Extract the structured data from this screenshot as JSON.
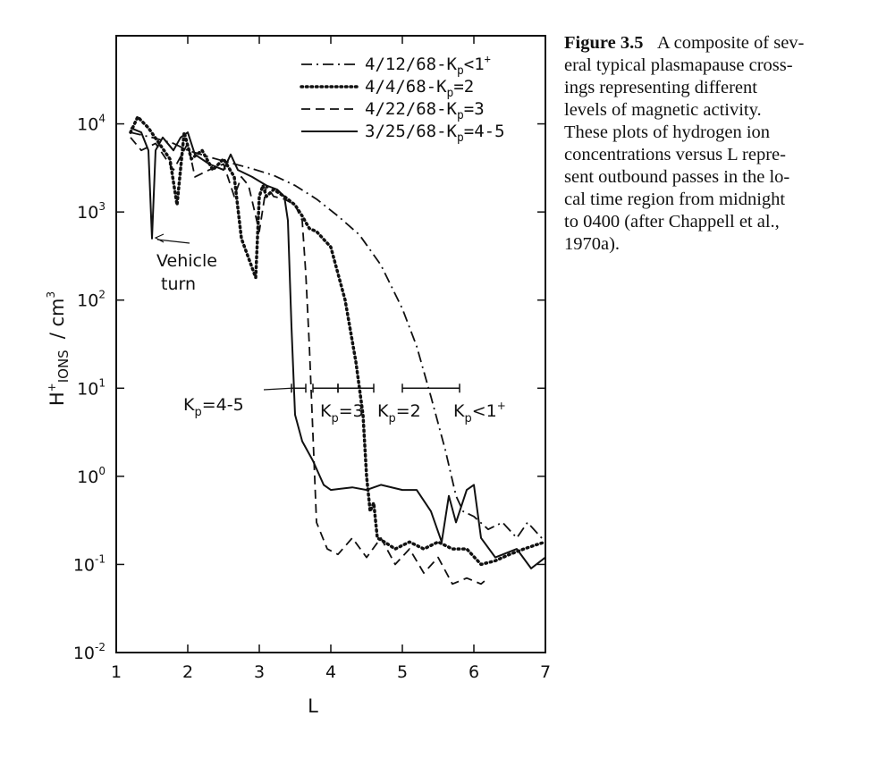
{
  "chart_data": {
    "type": "line",
    "title": "",
    "xlabel": "L",
    "ylabel": "H⁺IONS / cm³",
    "x_ticks": [
      "1",
      "2",
      "3",
      "4",
      "5",
      "6",
      "7"
    ],
    "y_ticks": [
      "10⁻²",
      "10⁻¹",
      "10⁰",
      "10¹",
      "10²",
      "10³",
      "10⁴"
    ],
    "xlim": [
      1,
      7
    ],
    "ylim_log10": [
      -2,
      5
    ],
    "y_scale": "log",
    "grid": false,
    "legend_position": "top-right",
    "series": [
      {
        "name": "4/12/68-Kp<1+",
        "style": "dashdot",
        "x": [
          1.2,
          1.5,
          1.8,
          2.0,
          2.3,
          2.6,
          2.9,
          3.2,
          3.5,
          3.8,
          4.1,
          4.4,
          4.7,
          5.0,
          5.2,
          5.4,
          5.6,
          5.75,
          5.85,
          6.0,
          6.2,
          6.4,
          6.6,
          6.75,
          6.9,
          7.0
        ],
        "y": [
          8000,
          7000,
          6000,
          5000,
          4200,
          3600,
          3100,
          2600,
          2000,
          1400,
          900,
          550,
          250,
          80,
          30,
          8,
          2,
          0.6,
          0.4,
          0.35,
          0.25,
          0.3,
          0.2,
          0.3,
          0.22,
          0.18
        ]
      },
      {
        "name": "4/4/68-Kp=2",
        "style": "dotted",
        "x": [
          1.2,
          1.3,
          1.45,
          1.6,
          1.75,
          1.85,
          1.95,
          2.05,
          2.2,
          2.35,
          2.5,
          2.65,
          2.75,
          2.85,
          2.95,
          3.0,
          3.05,
          3.1,
          3.2,
          3.35,
          3.5,
          3.6,
          3.7,
          3.8,
          4.0,
          4.2,
          4.35,
          4.45,
          4.5,
          4.55,
          4.6,
          4.65,
          4.75,
          4.9,
          5.1,
          5.3,
          5.5,
          5.7,
          5.9,
          6.1,
          6.3,
          6.5,
          6.7,
          6.9,
          7.0
        ],
        "y": [
          8000,
          12000,
          9000,
          6000,
          4000,
          1200,
          8000,
          4000,
          5000,
          3000,
          4000,
          2500,
          500,
          300,
          180,
          1500,
          2000,
          1500,
          1800,
          1500,
          1200,
          900,
          650,
          600,
          400,
          100,
          20,
          5,
          1,
          0.4,
          0.5,
          0.2,
          0.18,
          0.15,
          0.18,
          0.15,
          0.18,
          0.15,
          0.15,
          0.1,
          0.11,
          0.13,
          0.15,
          0.17,
          0.18
        ]
      },
      {
        "name": "4/22/68-Kp=3",
        "style": "dashed",
        "x": [
          1.2,
          1.35,
          1.55,
          1.8,
          2.0,
          2.1,
          2.3,
          2.5,
          2.65,
          2.75,
          2.85,
          3.0,
          3.1,
          3.2,
          3.35,
          3.5,
          3.6,
          3.65,
          3.7,
          3.75,
          3.8,
          3.95,
          4.1,
          4.3,
          4.5,
          4.7,
          4.9,
          5.1,
          5.3,
          5.5,
          5.7,
          5.9,
          6.1,
          6.2
        ],
        "y": [
          7000,
          5000,
          6000,
          3000,
          6000,
          2500,
          3000,
          3500,
          1500,
          2500,
          2000,
          600,
          2000,
          1500,
          1400,
          1200,
          800,
          200,
          30,
          3,
          0.3,
          0.15,
          0.13,
          0.2,
          0.12,
          0.2,
          0.1,
          0.15,
          0.08,
          0.12,
          0.06,
          0.07,
          0.06,
          0.07
        ]
      },
      {
        "name": "3/25/68-Kp=4-5",
        "style": "solid",
        "x": [
          1.2,
          1.35,
          1.45,
          1.5,
          1.55,
          1.65,
          1.8,
          1.9,
          2.0,
          2.1,
          2.3,
          2.5,
          2.6,
          2.7,
          2.9,
          3.1,
          3.25,
          3.35,
          3.4,
          3.45,
          3.5,
          3.6,
          3.75,
          3.9,
          4.0,
          4.3,
          4.5,
          4.7,
          5.0,
          5.2,
          5.4,
          5.55,
          5.65,
          5.75,
          5.9,
          6.0,
          6.1,
          6.3,
          6.6,
          6.8,
          7.0
        ],
        "y": [
          9000,
          8000,
          5000,
          500,
          5000,
          7000,
          5000,
          7000,
          8000,
          4500,
          3500,
          3000,
          4500,
          3000,
          2500,
          2000,
          1800,
          1500,
          800,
          50,
          5,
          2.5,
          1.5,
          0.8,
          0.7,
          0.75,
          0.7,
          0.8,
          0.7,
          0.7,
          0.4,
          0.18,
          0.6,
          0.3,
          0.7,
          0.8,
          0.2,
          0.12,
          0.15,
          0.09,
          0.12
        ]
      }
    ],
    "annotations": {
      "vehicle_turn_1": "Vehicle",
      "vehicle_turn_2": "turn",
      "range_labels": [
        "K",
        "p",
        "=4-5",
        "K",
        "p",
        "=3",
        "K",
        "p",
        "=2",
        "K",
        "p",
        "<1",
        "+"
      ]
    }
  },
  "axis": {
    "xlabel": "L",
    "ylabel_main": "H",
    "ylabel_sup": "+",
    "ylabel_sub": "IONS",
    "ylabel_unit": "/ cm",
    "ylabel_unit_sup": "3",
    "y_base": "10",
    "y_exps": [
      "-2",
      "-1",
      "0",
      "1",
      "2",
      "3",
      "4"
    ]
  },
  "legend": {
    "items": [
      {
        "prefix": "4/12/68-K",
        "sub": "p",
        "suffix": "<1",
        "sup": "+"
      },
      {
        "prefix": "4/4/68-K",
        "sub": "p",
        "suffix": "=2",
        "sup": ""
      },
      {
        "prefix": "4/22/68-K",
        "sub": "p",
        "suffix": "=3",
        "sup": ""
      },
      {
        "prefix": "3/25/68-K",
        "sub": "p",
        "suffix": "=4-5",
        "sup": ""
      }
    ]
  },
  "ranges": [
    {
      "label_k": "K",
      "label_sub": "p",
      "label_rest": "=4-5",
      "label_sup": "",
      "x_from": 3.45,
      "x_to": 3.65
    },
    {
      "label_k": "K",
      "label_sub": "p",
      "label_rest": "=3",
      "label_sup": "",
      "x_from": 3.75,
      "x_to": 4.1
    },
    {
      "label_k": "K",
      "label_sub": "p",
      "label_rest": "=2",
      "label_sup": "",
      "x_from": 4.1,
      "x_to": 4.6
    },
    {
      "label_k": "K",
      "label_sub": "p",
      "label_rest": "<1",
      "label_sup": "+",
      "x_from": 5.0,
      "x_to": 5.8
    }
  ],
  "caption": {
    "figure_label": "Figure 3.5",
    "lines": [
      "A composite of sev-",
      "eral typical plasmapause cross-",
      "ings representing different",
      "levels of magnetic activity.",
      "These plots of hydrogen ion",
      "concentrations versus L repre-",
      "sent outbound passes in the lo-",
      "cal time region from midnight",
      "to 0400 (after Chappell et al.,",
      "1970a)."
    ]
  }
}
